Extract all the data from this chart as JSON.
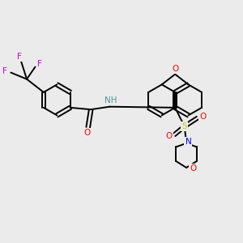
{
  "background_color": "#ebebeb",
  "atom_colors": {
    "C": "#000000",
    "H": "#4a9999",
    "N": "#0000ff",
    "O": "#ff0000",
    "S": "#cccc00",
    "F": "#cc00cc"
  },
  "figsize": [
    3.0,
    3.0
  ],
  "dpi": 100
}
